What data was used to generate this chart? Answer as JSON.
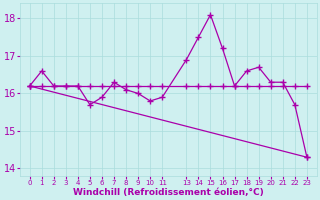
{
  "xlabel": "Windchill (Refroidissement éolien,°C)",
  "background_color": "#cff0f0",
  "line_color": "#aa00aa",
  "grid_color": "#aadddd",
  "font_color": "#aa00aa",
  "x_hours": [
    0,
    1,
    2,
    3,
    4,
    5,
    6,
    7,
    8,
    9,
    10,
    11,
    13,
    14,
    15,
    16,
    17,
    18,
    19,
    20,
    21,
    22,
    23
  ],
  "series1_y": [
    16.2,
    16.6,
    16.2,
    16.2,
    16.2,
    15.7,
    15.9,
    16.3,
    16.1,
    16.0,
    15.8,
    15.9,
    16.9,
    17.5,
    18.1,
    17.2,
    16.2,
    16.6,
    16.7,
    16.3,
    16.3,
    15.7,
    14.3
  ],
  "series2_y": [
    16.2,
    16.2,
    16.2,
    16.2,
    16.2,
    16.2,
    16.2,
    16.2,
    16.2,
    16.2,
    16.2,
    16.2,
    16.2,
    16.2,
    16.2,
    16.2,
    16.2,
    16.2,
    16.2,
    16.2,
    16.2,
    16.2,
    16.2
  ],
  "series3_x": [
    0,
    23
  ],
  "series3_y": [
    16.2,
    14.3
  ],
  "ylim": [
    13.8,
    18.4
  ],
  "yticks": [
    14,
    15,
    16,
    17,
    18
  ],
  "xlim": [
    -0.8,
    23.8
  ],
  "xtick_positions": [
    0,
    1,
    2,
    3,
    4,
    5,
    6,
    7,
    8,
    9,
    10,
    11,
    13,
    14,
    15,
    16,
    17,
    18,
    19,
    20,
    21,
    22,
    23
  ],
  "xtick_labels": [
    "0",
    "1",
    "2",
    "3",
    "4",
    "5",
    "6",
    "7",
    "8",
    "9",
    "10",
    "11",
    "13",
    "14",
    "15",
    "16",
    "17",
    "18",
    "19",
    "20",
    "21",
    "22",
    "23"
  ],
  "marker": "+",
  "markersize": 4,
  "linewidth": 0.9,
  "ytick_fontsize": 7,
  "xtick_fontsize": 5,
  "xlabel_fontsize": 6.5
}
